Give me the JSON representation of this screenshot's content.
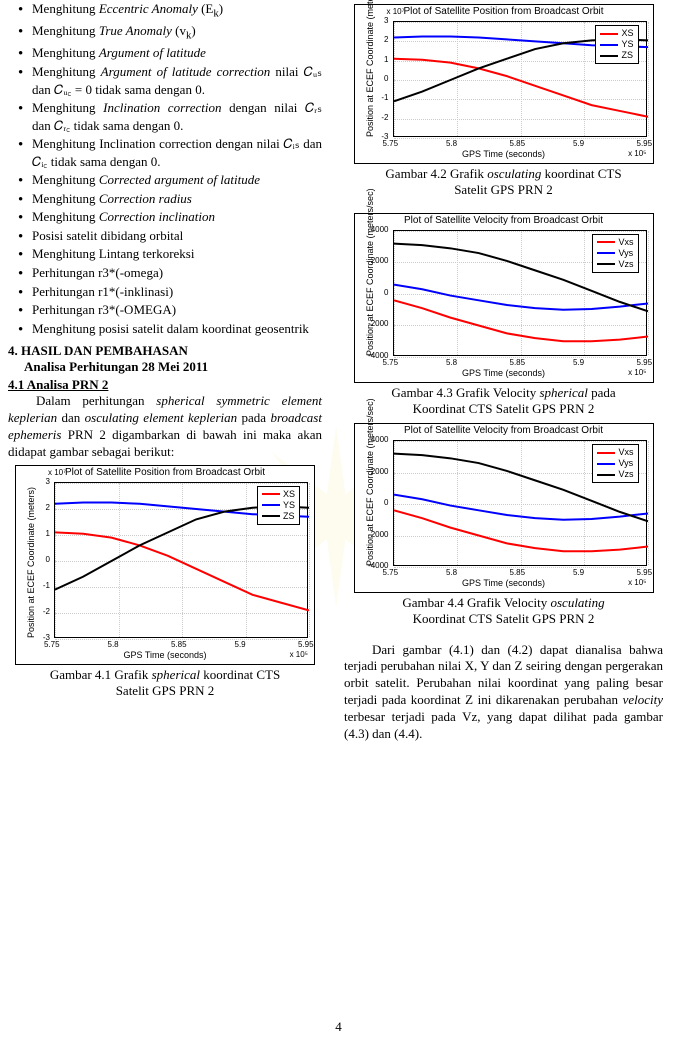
{
  "bullets": [
    {
      "pre": "Menghitung ",
      "it": "Eccentric Anomaly",
      "post": " (E",
      "sub": "k",
      "post2": ")"
    },
    {
      "pre": "Menghitung ",
      "it": "True Anomaly",
      "post": " (v",
      "sub": "k",
      "post2": ")"
    },
    {
      "pre": "Menghitung ",
      "it": "Argument of latitude"
    },
    {
      "pre": "Menghitung ",
      "it": "Argument of latitude correction",
      "post": " nilai 𝐶ᵤₛ dan 𝐶ᵤ꜀ = 0 tidak sama dengan 0."
    },
    {
      "pre": "Menghitung ",
      "it": "Inclination correction",
      "post": " dengan nilai 𝐶ᵣₛ dan 𝐶ᵣ꜀ tidak sama dengan 0."
    },
    {
      "pre": "Menghitung Inclination correction dengan nilai 𝐶ᵢₛ dan 𝐶ᵢ꜀ tidak sama dengan 0."
    },
    {
      "pre": "Menghitung ",
      "it": "Corrected argument of latitude"
    },
    {
      "pre": "Menghitung ",
      "it": "Correction radius"
    },
    {
      "pre": "Menghitung ",
      "it": "Correction inclination"
    },
    {
      "pre": "Posisi satelit dibidang orbital"
    },
    {
      "pre": "Menghitung Lintang terkoreksi"
    },
    {
      "pre": "Perhitungan r3*(-omega)"
    },
    {
      "pre": "Perhitungan r1*(-inklinasi)"
    },
    {
      "pre": "Perhitungan r3*(-OMEGA)"
    },
    {
      "pre": "Menghitung posisi satelit dalam koordinat geosentrik"
    }
  ],
  "section4": "4. HASIL DAN PEMBAHASAN",
  "section4sub": "Analisa Perhitungan 28 Mei 2011",
  "section411": "4.1    Analisa PRN 2",
  "leftPara": "Dalam perhitungan spherical symmetric element keplerian dan osculating element keplerian pada broadcast ephemeris PRN 2 digambarkan di bawah ini maka akan didapat gambar sebagai berikut:",
  "cap41": "Gambar 4.1 Grafik spherical koordinat CTS Satelit GPS PRN 2",
  "cap42": "Gambar 4.2 Grafik osculating koordinat CTS Satelit GPS PRN 2",
  "cap43": "Gambar 4.3 Grafik Velocity spherical pada Koordinat  CTS  Satelit GPS PRN 2",
  "cap44": "Gambar 4.4 Grafik Velocity osculating Koordinat  CTS  Satelit GPS PRN 2",
  "rightPara": "Dari gambar  (4.1) dan (4.2) dapat dianalisa bahwa terjadi perubahan  nilai X, Y dan Z  seiring  dengan  pergerakan  orbit  satelit. Perubahan   nilai  koordinat  yang  paling  besar terjadi  pada  koordinat  Z  ini  dikarenakan perubahan  velocity  terbesar  terjadi   pada   Vz, yang dapat dilihat pada gambar (4.3) dan (4.4).",
  "pagenum": "4",
  "colors": {
    "xs": "#ff0000",
    "ys": "#0000ff",
    "zs": "#000000",
    "axis": "#000000",
    "grid": "#cccccc",
    "tick": "#000000",
    "bg": "#ffffff"
  },
  "chartPos": {
    "title": "Plot of Satellite Position from Broadcast Orbit",
    "ylabel": "Position at ECEF Coordinate (meters)",
    "xlabel": "GPS Time (seconds)",
    "xticks": [
      "5.75",
      "5.8",
      "5.85",
      "5.9",
      "5.95"
    ],
    "yticks": [
      "-3",
      "-2",
      "-1",
      "0",
      "1",
      "2",
      "3"
    ],
    "xexp": "x 10⁵",
    "yexp": "x 10⁷",
    "legend": [
      "XS",
      "YS",
      "ZS"
    ],
    "series": {
      "XS": [
        1.1,
        1.05,
        0.9,
        0.6,
        0.2,
        -0.3,
        -0.8,
        -1.3,
        -1.6,
        -1.9
      ],
      "YS": [
        2.2,
        2.25,
        2.25,
        2.2,
        2.1,
        2.0,
        1.9,
        1.8,
        1.75,
        1.7
      ],
      "ZS": [
        -1.1,
        -0.6,
        0.0,
        0.6,
        1.1,
        1.6,
        1.9,
        2.05,
        2.1,
        2.05
      ]
    },
    "ylim": [
      -3,
      3
    ]
  },
  "chartVel": {
    "title": "Plot of Satellite Velocity from Broadcast Orbit",
    "ylabel": "Position at ECEF Coordinate (meters/sec)",
    "xlabel": "GPS Time (seconds)",
    "xticks": [
      "5.75",
      "5.8",
      "5.85",
      "5.9",
      "5.95"
    ],
    "yticks": [
      "-4000",
      "-2000",
      "0",
      "2000",
      "4000"
    ],
    "xexp": "x 10⁵",
    "legend": [
      "Vxs",
      "Vys",
      "Vzs"
    ],
    "series": {
      "Vxs": [
        -400,
        -900,
        -1500,
        -2000,
        -2500,
        -2800,
        -3000,
        -3000,
        -2900,
        -2700
      ],
      "Vys": [
        600,
        300,
        -100,
        -400,
        -700,
        -900,
        -1000,
        -950,
        -800,
        -600
      ],
      "Vzs": [
        3200,
        3100,
        2900,
        2600,
        2100,
        1500,
        900,
        200,
        -500,
        -1100
      ]
    },
    "ylim": [
      -4000,
      4000
    ]
  }
}
